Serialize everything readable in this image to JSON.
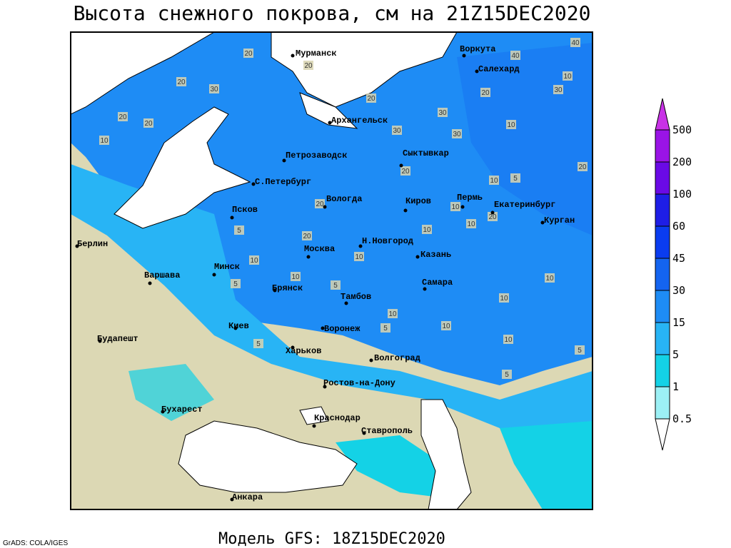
{
  "title": "Высота снежного покрова, см на 21Z15DEC2020",
  "subtitle": "Модель GFS: 18Z15DEC2020",
  "credit": "GrADS: COLA/IGES",
  "legend": {
    "levels": [
      500,
      200,
      100,
      60,
      45,
      30,
      15,
      5,
      1,
      0.5
    ],
    "colors": [
      "#c832e6",
      "#9a14e6",
      "#6a0ae6",
      "#1e1ee6",
      "#0a3cf0",
      "#1464f0",
      "#1e8cf5",
      "#28b4f5",
      "#14d2e6",
      "#9cf0f5",
      "#ffffff"
    ]
  },
  "cities": [
    "Мурманск",
    "Воркута",
    "Салехард",
    "Архангельск",
    "Петрозаводск",
    "Сыктывкар",
    "С.Петербург",
    "Вологда",
    "Киров",
    "Пермь",
    "Екатеринбург",
    "Курган",
    "Псков",
    "Берлин",
    "Н.Новгород",
    "Москва",
    "Казань",
    "Минск",
    "Варшава",
    "Самара",
    "Брянск",
    "Тамбов",
    "Киев",
    "Воронеж",
    "Будапешт",
    "Харьков",
    "Волгоград",
    "Ростов-на-Дону",
    "Бухарест",
    "Краснодар",
    "Ставрополь",
    "Анкара"
  ],
  "contour_labels": [
    20,
    20,
    40,
    40,
    20,
    30,
    20,
    30,
    20,
    30,
    10,
    20,
    20,
    10,
    30,
    30,
    10,
    20,
    10,
    5,
    20,
    20,
    10,
    10,
    10,
    20,
    20,
    5,
    10,
    10,
    5,
    5,
    10,
    10,
    10,
    10,
    5,
    5,
    10,
    10,
    5,
    5
  ]
}
